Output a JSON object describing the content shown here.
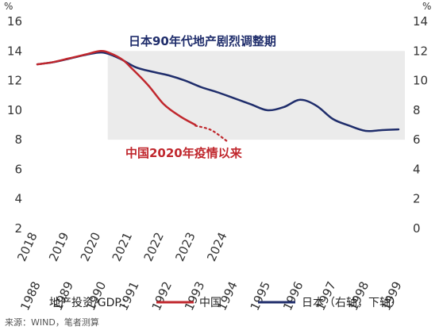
{
  "chart_data": {
    "type": "line",
    "left_unit": "%",
    "right_unit": "%",
    "yticks_left": [
      2,
      4,
      6,
      8,
      10,
      12,
      14,
      16
    ],
    "yticks_right": [
      0,
      2,
      4,
      6,
      8,
      10,
      12,
      14
    ],
    "ylim_left": [
      2,
      16
    ],
    "ylim_right": [
      0,
      14
    ],
    "x_top_labels": [
      "2018",
      "2019",
      "2020",
      "2021",
      "2022",
      "2023",
      "2024"
    ],
    "x_bottom_labels": [
      "1988",
      "1989",
      "1990",
      "1991",
      "1992",
      "1993",
      "1994",
      "1995",
      "1996",
      "1997",
      "1998",
      "1999"
    ],
    "shaded_region": {
      "x_range": [
        1990,
        1999
      ],
      "y_range_right": [
        6,
        12
      ]
    },
    "series": [
      {
        "name": "中国",
        "axis": "top-x / left-y",
        "color": "#c0272d",
        "x": [
          2018,
          2018.5,
          2019,
          2019.5,
          2020,
          2020.3,
          2020.7,
          2021,
          2021.5,
          2022,
          2022.5,
          2023
        ],
        "y": [
          13.1,
          13.25,
          13.5,
          13.75,
          14.0,
          13.85,
          13.4,
          12.8,
          11.7,
          10.4,
          9.6,
          9.0
        ]
      },
      {
        "name": "中国 (projection)",
        "axis": "top-x / left-y",
        "color": "#c0272d",
        "style": "dotted",
        "x": [
          2023,
          2023.5,
          2024
        ],
        "y": [
          8.95,
          8.65,
          7.9
        ]
      },
      {
        "name": "日本",
        "axis": "bottom-x / right-y",
        "color": "#1f2d6b",
        "x": [
          1988,
          1988.5,
          1989,
          1989.5,
          1990,
          1990.5,
          1991,
          1991.5,
          1992,
          1992.5,
          1993,
          1993.5,
          1994,
          1994.5,
          1995,
          1995.5,
          1996,
          1996.5,
          1997,
          1997.5,
          1998,
          1998.5,
          1999
        ],
        "y": [
          11.1,
          11.25,
          11.5,
          11.75,
          11.9,
          11.5,
          10.9,
          10.6,
          10.35,
          10.0,
          9.55,
          9.2,
          8.8,
          8.4,
          8.0,
          8.2,
          8.7,
          8.3,
          7.4,
          6.95,
          6.6,
          6.65,
          6.7
        ]
      }
    ]
  },
  "annotations": {
    "japan_period": "日本90年代地产剧烈调整期",
    "china_since_2020": "中国2020年疫情以来"
  },
  "legend": {
    "prefix": "地产投资/GDP：",
    "china": "中国",
    "japan": "日本（右轴，下轴）"
  },
  "source": "来源：WIND，笔者测算",
  "colors": {
    "china": "#c0272d",
    "japan": "#1f2d6b",
    "shade": "#ebebeb"
  }
}
